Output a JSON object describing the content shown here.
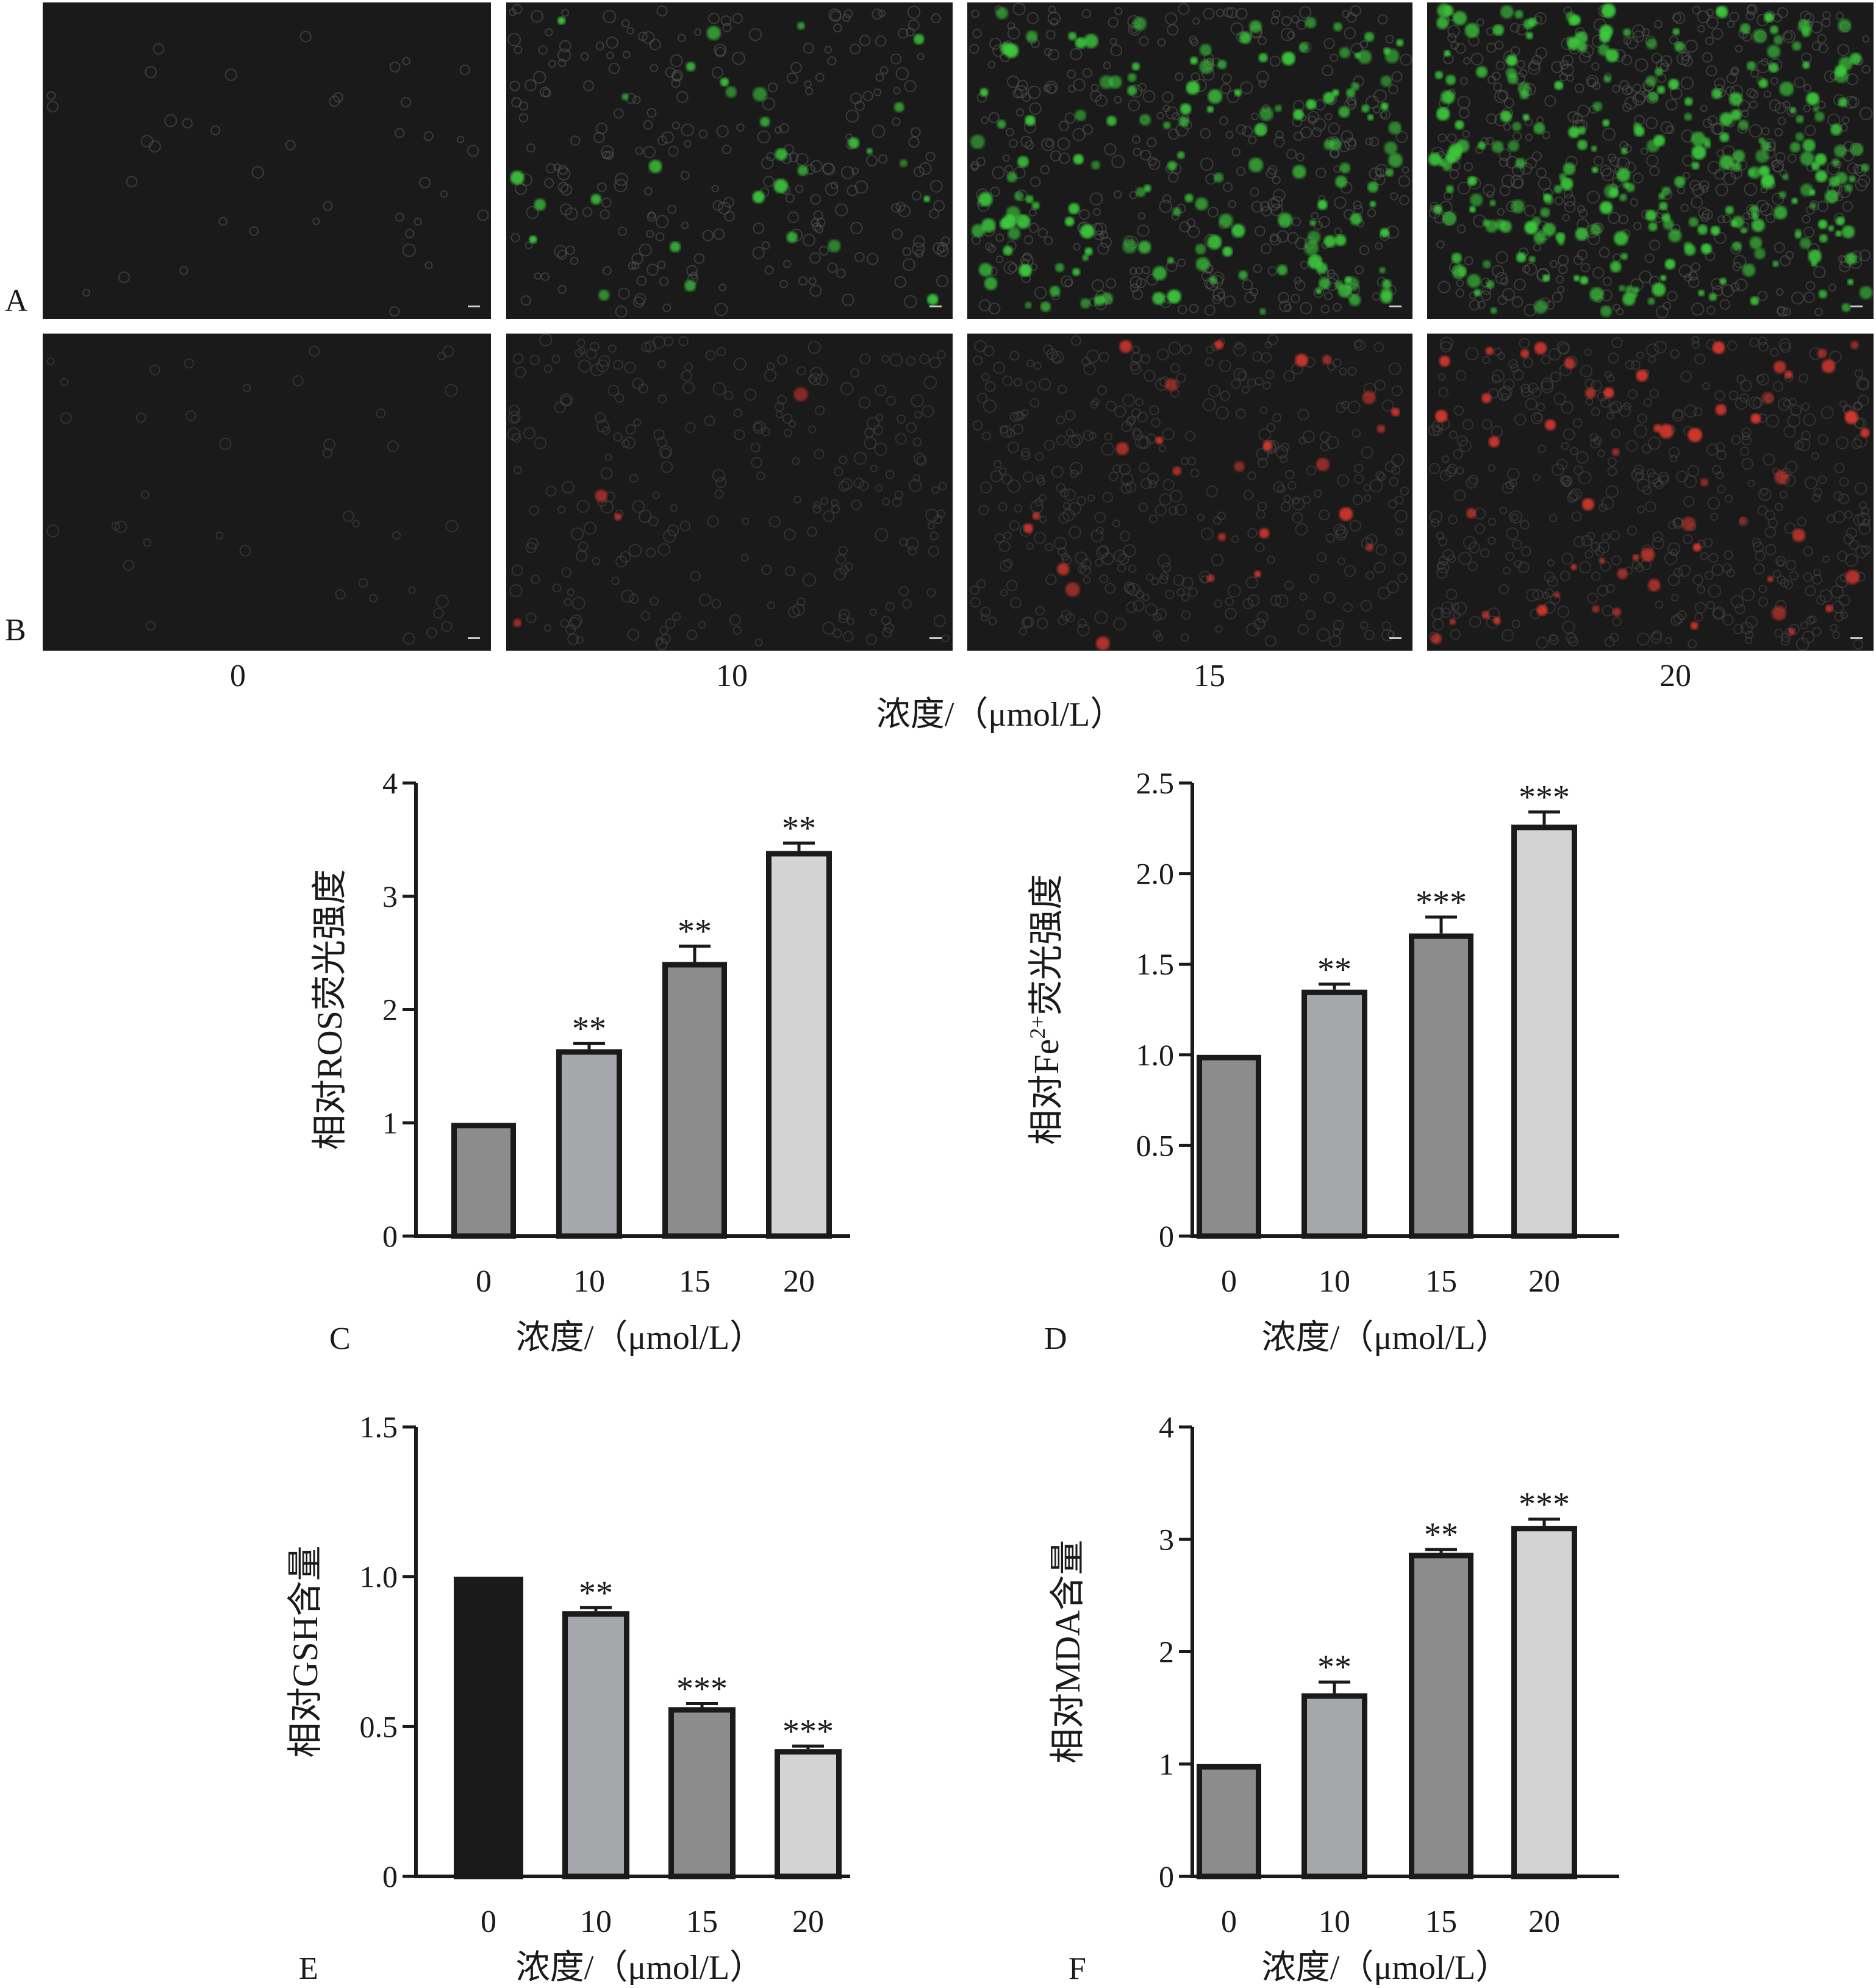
{
  "micrographs": {
    "row_labels": [
      "A",
      "B"
    ],
    "column_labels": [
      "0",
      "10",
      "15",
      "20"
    ],
    "x_title": "浓度/（μmol/L）",
    "row_colors": {
      "A": "#3ecb3e",
      "B": "#d9392f"
    },
    "background_color": "#1a1a1a"
  },
  "chart_data": [
    {
      "panel": "C",
      "type": "bar",
      "categories": [
        "0",
        "10",
        "15",
        "20"
      ],
      "values": [
        1.0,
        1.65,
        2.42,
        3.4
      ],
      "errors": [
        0.0,
        0.05,
        0.14,
        0.07
      ],
      "significance": [
        "",
        "**",
        "**",
        "**"
      ],
      "xlabel": "浓度/（μmol/L）",
      "ylabel": "相对ROS荧光强度",
      "ylim": [
        0,
        4
      ],
      "yticks": [
        0,
        1,
        2,
        3,
        4
      ],
      "ytick_labels": [
        "0",
        "1",
        "2",
        "3",
        "4"
      ],
      "bar_colors": [
        "#8c8c8c",
        "#a6a7ab",
        "#8c8c8c",
        "#d3d3d3"
      ]
    },
    {
      "panel": "D",
      "type": "bar",
      "categories": [
        "0",
        "10",
        "15",
        "20"
      ],
      "values": [
        1.0,
        1.36,
        1.67,
        2.27
      ],
      "errors": [
        0.0,
        0.03,
        0.09,
        0.07
      ],
      "significance": [
        "",
        "**",
        "***",
        "***"
      ],
      "xlabel": "浓度/（μmol/L）",
      "ylabel_main": "相对Fe",
      "ylabel_sup": "2+",
      "ylabel_tail": "荧光强度",
      "ylim": [
        0,
        2.5
      ],
      "yticks": [
        0,
        0.5,
        1.0,
        1.5,
        2.0,
        2.5
      ],
      "ytick_labels": [
        "0",
        "0.5",
        "1.0",
        "1.5",
        "2.0",
        "2.5"
      ],
      "bar_colors": [
        "#8c8c8c",
        "#a6a7ab",
        "#8c8c8c",
        "#d3d3d3"
      ]
    },
    {
      "panel": "E",
      "type": "bar",
      "categories": [
        "0",
        "10",
        "15",
        "20"
      ],
      "values": [
        1.0,
        0.885,
        0.565,
        0.425
      ],
      "errors": [
        0.0,
        0.012,
        0.012,
        0.01
      ],
      "significance": [
        "",
        "**",
        "***",
        "***"
      ],
      "xlabel": "浓度/（μmol/L）",
      "ylabel": "相对GSH含量",
      "ylim": [
        0,
        1.5
      ],
      "yticks": [
        0,
        0.5,
        1.0,
        1.5
      ],
      "ytick_labels": [
        "0",
        "0.5",
        "1.0",
        "1.5"
      ],
      "bar_colors": [
        "#1a1a1a",
        "#a6a7ab",
        "#8c8c8c",
        "#d3d3d3"
      ]
    },
    {
      "panel": "F",
      "type": "bar",
      "categories": [
        "0",
        "10",
        "15",
        "20"
      ],
      "values": [
        1.0,
        1.63,
        2.88,
        3.12
      ],
      "errors": [
        0.0,
        0.1,
        0.03,
        0.06
      ],
      "significance": [
        "",
        "**",
        "**",
        "***"
      ],
      "xlabel": "浓度/（μmol/L）",
      "ylabel": "相对MDA含量",
      "ylim": [
        0,
        4
      ],
      "yticks": [
        0,
        1,
        2,
        3,
        4
      ],
      "ytick_labels": [
        "0",
        "1",
        "2",
        "3",
        "4"
      ],
      "bar_colors": [
        "#8c8c8c",
        "#a6a7ab",
        "#8c8c8c",
        "#d3d3d3"
      ]
    }
  ]
}
